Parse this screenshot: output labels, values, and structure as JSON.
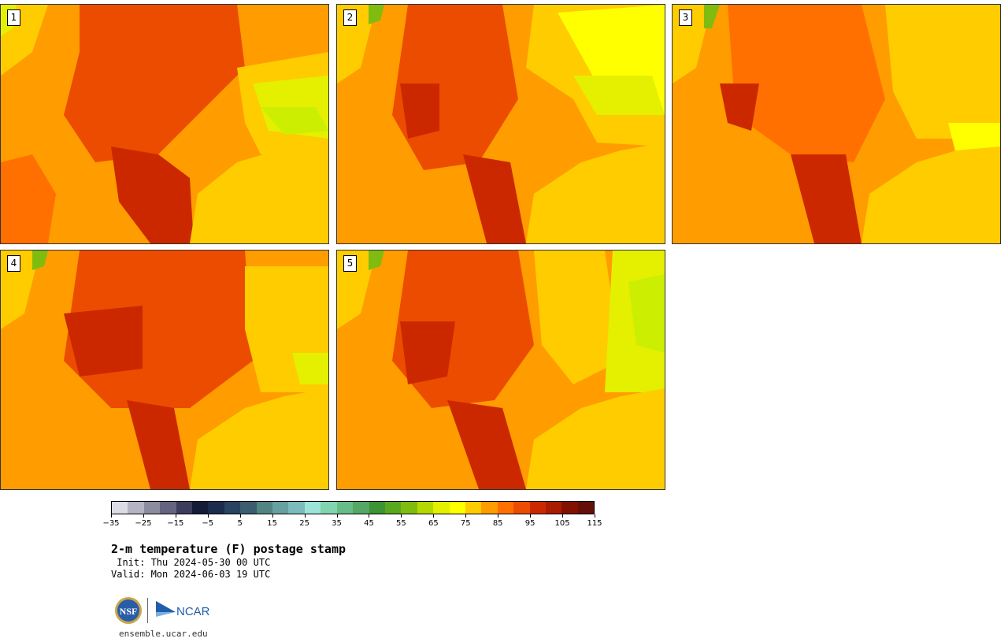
{
  "product": {
    "title": "2-m temperature (F) postage stamp",
    "init": " Init: Thu 2024-05-30 00 UTC",
    "valid": "Valid: Mon 2024-06-03 19 UTC",
    "site": "ensemble.ucar.edu"
  },
  "members": [
    {
      "label": "1"
    },
    {
      "label": "2"
    },
    {
      "label": "3"
    },
    {
      "label": "4"
    },
    {
      "label": "5"
    }
  ],
  "colorbar": {
    "ticks": [
      "−35",
      "−25",
      "−15",
      "−5",
      "5",
      "15",
      "25",
      "35",
      "45",
      "55",
      "65",
      "75",
      "85",
      "95",
      "105",
      "115"
    ],
    "colors": [
      "#dcdce4",
      "#b4b4c4",
      "#8c8ca0",
      "#646480",
      "#3c3c5c",
      "#141c38",
      "#1c2c4c",
      "#284460",
      "#3c5c70",
      "#528484",
      "#66a0a0",
      "#7cbcbc",
      "#9ce4d8",
      "#80d4b0",
      "#68bc88",
      "#54a864",
      "#3c9434",
      "#58a820",
      "#80bc10",
      "#b4d800",
      "#e4f000",
      "#ffff00",
      "#ffcc00",
      "#ff9c00",
      "#ff7000",
      "#ec4c00",
      "#cc2800",
      "#a81c00",
      "#841000",
      "#641008"
    ]
  },
  "logos": {
    "nsf": "NSF",
    "ncar": "NCAR"
  }
}
